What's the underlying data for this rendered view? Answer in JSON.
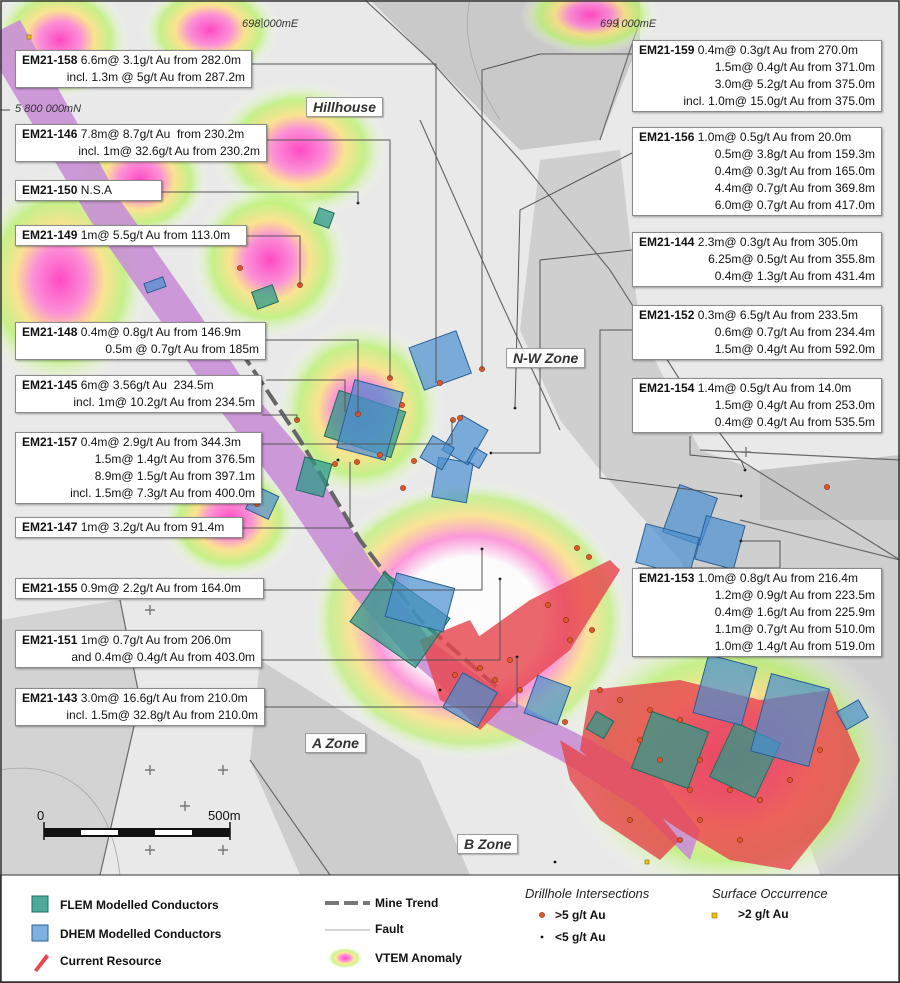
{
  "map": {
    "coordinates": {
      "easting_1": "698 000mE",
      "easting_2": "699 000mE",
      "northing": "5 800 000mN"
    },
    "zones": {
      "hillhouse": "Hillhouse",
      "nw_zone": "N-W Zone",
      "a_zone": "A Zone",
      "b_zone": "B Zone"
    },
    "scale": {
      "start": "0",
      "end": "500m"
    }
  },
  "callouts": {
    "em21_158": {
      "rows": [
        {
          "hole": "EM21-158",
          "text": " 6.6m@ 3.1g/t Au from 282.0m"
        },
        {
          "hole": "",
          "text": "incl. 1.3m @ 5g/t Au from 287.2m"
        }
      ]
    },
    "em21_146": {
      "rows": [
        {
          "hole": "EM21-146",
          "text": " 7.8m@ 8.7g/t Au  from 230.2m"
        },
        {
          "hole": "",
          "text": "incl. 1m@ 32.6g/t Au from 230.2m"
        }
      ]
    },
    "em21_150": {
      "rows": [
        {
          "hole": "EM21-150",
          "text": " N.S.A"
        }
      ]
    },
    "em21_149": {
      "rows": [
        {
          "hole": "EM21-149",
          "text": " 1m@ 5.5g/t Au from 113.0m"
        }
      ]
    },
    "em21_148": {
      "rows": [
        {
          "hole": "EM21-148",
          "text": " 0.4m@ 0.8g/t Au from 146.9m"
        },
        {
          "hole": "",
          "text": "0.5m @ 0.7g/t Au from 185m"
        }
      ]
    },
    "em21_145": {
      "rows": [
        {
          "hole": "EM21-145",
          "text": " 6m@ 3.56g/t Au  234.5m"
        },
        {
          "hole": "",
          "text": "incl. 1m@ 10.2g/t Au from 234.5m"
        }
      ]
    },
    "em21_157": {
      "rows": [
        {
          "hole": "EM21-157",
          "text": " 0.4m@ 2.9g/t Au from 344.3m"
        },
        {
          "hole": "",
          "text": "1.5m@ 1.4g/t Au from 376.5m"
        },
        {
          "hole": "",
          "text": "8.9m@ 1.5g/t Au from 397.1m"
        },
        {
          "hole": "",
          "text": "incl. 1.5m@ 7.3g/t Au from 400.0m"
        }
      ]
    },
    "em21_147": {
      "rows": [
        {
          "hole": "EM21-147",
          "text": " 1m@ 3.2g/t Au from 91.4m"
        }
      ]
    },
    "em21_155": {
      "rows": [
        {
          "hole": "EM21-155",
          "text": " 0.9m@ 2.2g/t Au from 164.0m"
        }
      ]
    },
    "em21_151": {
      "rows": [
        {
          "hole": "EM21-151",
          "text": " 1m@ 0.7g/t Au from 206.0m"
        },
        {
          "hole": "",
          "text": "and 0.4m@ 0.4g/t Au from 403.0m"
        }
      ]
    },
    "em21_143": {
      "rows": [
        {
          "hole": "EM21-143",
          "text": " 3.0m@ 16.6g/t Au from 210.0m"
        },
        {
          "hole": "",
          "text": "incl. 1.5m@ 32.8g/t Au from 210.0m"
        }
      ]
    },
    "em21_159": {
      "rows": [
        {
          "hole": "EM21-159",
          "text": " 0.4m@ 0.3g/t Au from 270.0m"
        },
        {
          "hole": "",
          "text": "1.5m@ 0.4g/t Au from 371.0m"
        },
        {
          "hole": "",
          "text": "3.0m@ 5.2g/t Au from 375.0m"
        },
        {
          "hole": "",
          "text": "incl. 1.0m@ 15.0g/t Au from 375.0m"
        }
      ]
    },
    "em21_156": {
      "rows": [
        {
          "hole": "EM21-156",
          "text": " 1.0m@ 0.5g/t Au from 20.0m"
        },
        {
          "hole": "",
          "text": "0.5m@ 3.8g/t Au from 159.3m"
        },
        {
          "hole": "",
          "text": "0.4m@ 0.3g/t Au from 165.0m"
        },
        {
          "hole": "",
          "text": "4.4m@ 0.7g/t Au from 369.8m"
        },
        {
          "hole": "",
          "text": "6.0m@ 0.7g/t Au from 417.0m"
        }
      ]
    },
    "em21_144": {
      "rows": [
        {
          "hole": "EM21-144",
          "text": " 2.3m@ 0.3g/t Au from 305.0m"
        },
        {
          "hole": "",
          "text": "6.25m@ 0.5g/t Au from 355.8m"
        },
        {
          "hole": "",
          "text": "0.4m@ 1.3g/t Au from 431.4m"
        }
      ]
    },
    "em21_152": {
      "rows": [
        {
          "hole": "EM21-152",
          "text": " 0.3m@ 6.5g/t Au from 233.5m"
        },
        {
          "hole": "",
          "text": "0.6m@ 0.7g/t Au from 234.4m"
        },
        {
          "hole": "",
          "text": "1.5m@ 0.4g/t Au from 592.0m"
        }
      ]
    },
    "em21_154": {
      "rows": [
        {
          "hole": "EM21-154",
          "text": " 1.4m@ 0.5g/t Au from 14.0m"
        },
        {
          "hole": "",
          "text": "1.5m@ 0.4g/t Au from 253.0m"
        },
        {
          "hole": "",
          "text": "0.4m@ 0.4g/t Au from 535.5m"
        }
      ]
    },
    "em21_153": {
      "rows": [
        {
          "hole": "EM21-153",
          "text": " 1.0m@ 0.8g/t Au from 216.4m"
        },
        {
          "hole": "",
          "text": "1.2m@ 0.9g/t Au from 223.5m"
        },
        {
          "hole": "",
          "text": "0.4m@ 1.6g/t Au from 225.9m"
        },
        {
          "hole": "",
          "text": "1.1m@ 0.7g/t Au from 510.0m"
        },
        {
          "hole": "",
          "text": "1.0m@ 1.4g/t Au from 519.0m"
        }
      ]
    }
  },
  "legend": {
    "flem": "FLEM Modelled Conductors",
    "dhem": "DHEM Modelled Conductors",
    "resource": "Current Resource",
    "mine_trend": "Mine Trend",
    "fault": "Fault",
    "vtem": "VTEM Anomaly",
    "drillhole_title": "Drillhole Intersections",
    "gt5": ">5 g/t Au",
    "lt5": "<5 g/t Au",
    "surface_title": "Surface Occurrence",
    "gt2": ">2 g/t Au"
  },
  "colors": {
    "flem": "#2e9a88",
    "dhem": "#4a8fd0",
    "resource": "#e8474f",
    "mine_trend_band": "#c98fd6",
    "drill_gt5": "#e0572a",
    "drill_lt5": "#111111",
    "surface_gt2": "#f2c200",
    "background": "#dcdcdc",
    "dark_fault_block": "#c4c4c4"
  }
}
